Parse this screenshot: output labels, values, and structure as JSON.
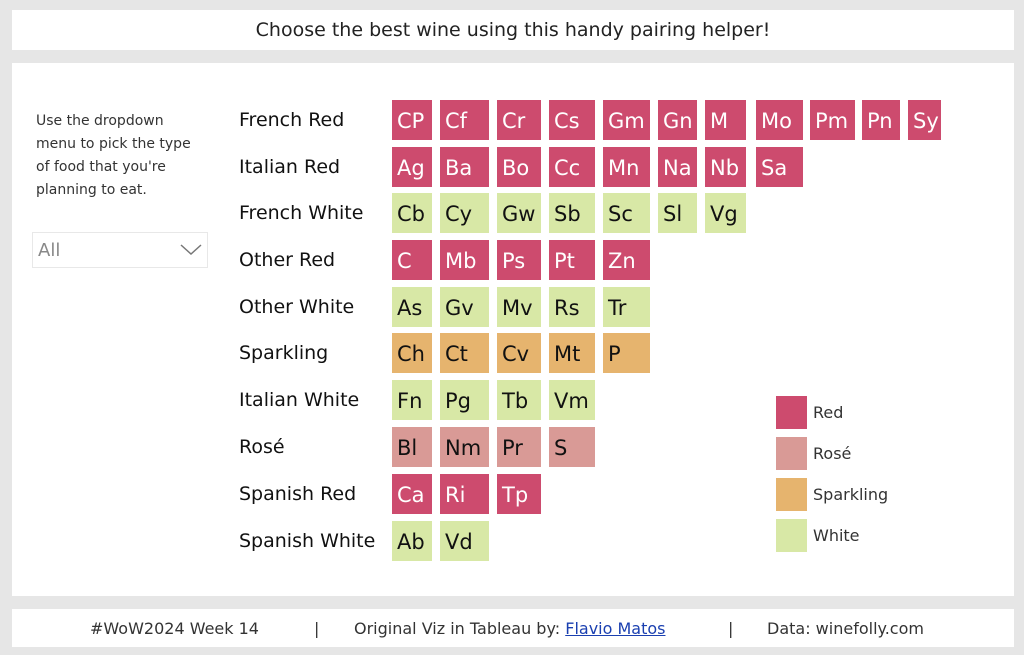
{
  "header": {
    "title": "Choose the best wine using this handy pairing helper!"
  },
  "sidebar": {
    "instructions": "Use the dropdown menu to pick the type of food that you're planning to eat.",
    "dropdown": {
      "value": "All",
      "icon": "chevron-down-icon"
    }
  },
  "colors": {
    "Red": "#cd4b6e",
    "Rosé": "#d99a96",
    "Sparkling": "#e6b46e",
    "White": "#d8e8a6"
  },
  "rows": [
    {
      "label": "French Red",
      "type": "Red",
      "wines": [
        "CP",
        "Cf",
        "Cr",
        "Cs",
        "Gm",
        "Gn",
        "M",
        "Mo",
        "Pm",
        "Pn",
        "Sy"
      ]
    },
    {
      "label": "Italian Red",
      "type": "Red",
      "wines": [
        "Ag",
        "Ba",
        "Bo",
        "Cc",
        "Mn",
        "Na",
        "Nb",
        "Sa"
      ]
    },
    {
      "label": "French White",
      "type": "White",
      "wines": [
        "Cb",
        "Cy",
        "Gw",
        "Sb",
        "Sc",
        "Sl",
        "Vg"
      ]
    },
    {
      "label": "Other Red",
      "type": "Red",
      "wines": [
        "C",
        "Mb",
        "Ps",
        "Pt",
        "Zn"
      ]
    },
    {
      "label": "Other White",
      "type": "White",
      "wines": [
        "As",
        "Gv",
        "Mv",
        "Rs",
        "Tr"
      ]
    },
    {
      "label": "Sparkling",
      "type": "Sparkling",
      "wines": [
        "Ch",
        "Ct",
        "Cv",
        "Mt",
        "P"
      ]
    },
    {
      "label": "Italian White",
      "type": "White",
      "wines": [
        "Fn",
        "Pg",
        "Tb",
        "Vm"
      ]
    },
    {
      "label": "Rosé",
      "type": "Rosé",
      "wines": [
        "Bl",
        "Nm",
        "Pr",
        "S"
      ]
    },
    {
      "label": "Spanish Red",
      "type": "Red",
      "wines": [
        "Ca",
        "Ri",
        "Tp"
      ]
    },
    {
      "label": "Spanish White",
      "type": "White",
      "wines": [
        "Ab",
        "Vd"
      ]
    }
  ],
  "legend": [
    "Red",
    "Rosé",
    "Sparkling",
    "White"
  ],
  "footer": {
    "week": "#WoW2024 Week 14",
    "sep": "|",
    "credit_prefix": "Original Viz in Tableau by: ",
    "credit_link": "Flavio Matos",
    "data_source": "Data: winefolly.com"
  }
}
